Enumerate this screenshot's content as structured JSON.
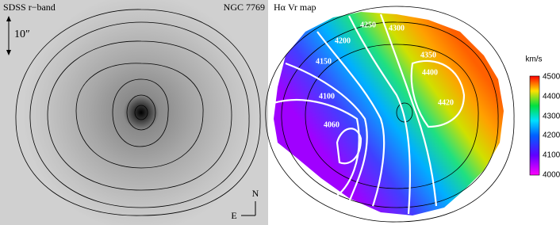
{
  "left_panel": {
    "label": "SDSS r−band",
    "object": "NGC 7769",
    "scale": "10″",
    "north": "N",
    "east": "E"
  },
  "right_panel": {
    "label": "Hα Vr map",
    "contour_labels": [
      "4250",
      "4300",
      "4200",
      "4150",
      "4350",
      "4400",
      "4100",
      "4420",
      "4060"
    ]
  },
  "colorbar": {
    "unit": "km/s",
    "ticks": [
      "4500",
      "4400",
      "4300",
      "4200",
      "4100",
      "4000"
    ]
  }
}
